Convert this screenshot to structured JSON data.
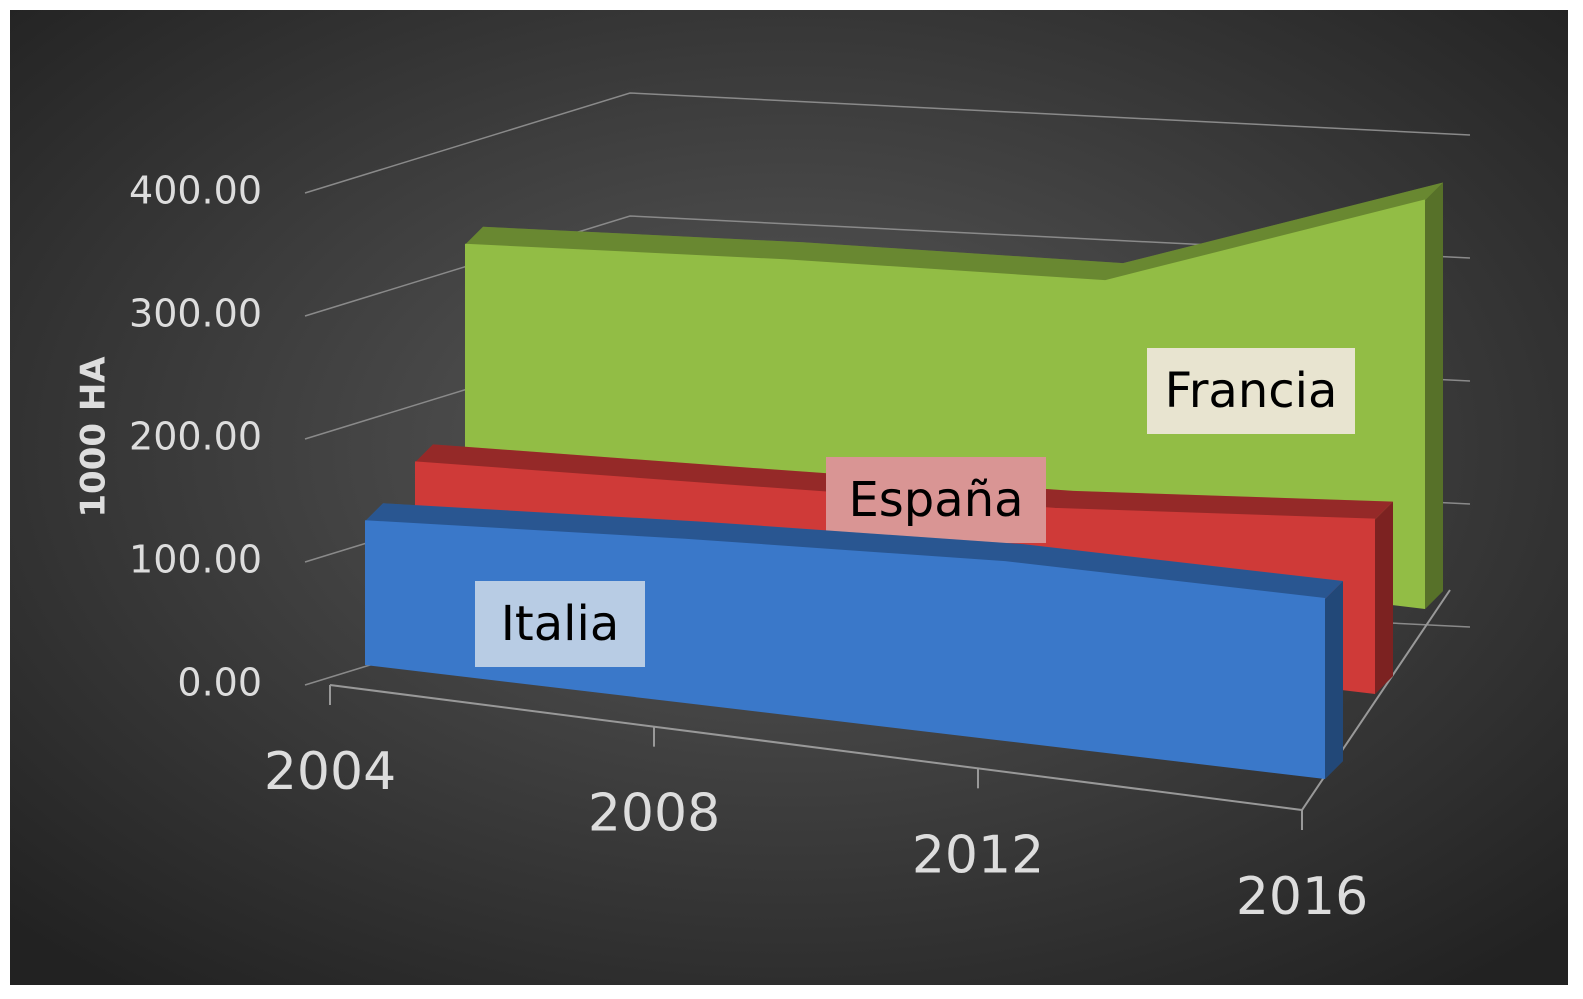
{
  "chart_data": {
    "type": "line3d",
    "y_axis_label": "1000 HA",
    "categories": [
      "2004",
      "2008",
      "2012",
      "2016"
    ],
    "series": [
      {
        "name": "Italia",
        "color": "#3a78c9",
        "values": [
          125,
          138,
          147,
          144
        ]
      },
      {
        "name": "España",
        "color": "#cf3a38",
        "values": [
          110,
          120,
          130,
          150
        ]
      },
      {
        "name": "Francia",
        "color": "#92bd45",
        "values": [
          253,
          268,
          277,
          380
        ]
      }
    ],
    "ylim": [
      0,
      400
    ],
    "yticks": [
      {
        "value": 0,
        "label": "0.00"
      },
      {
        "value": 100,
        "label": "100.00"
      },
      {
        "value": 200,
        "label": "200.00"
      },
      {
        "value": 300,
        "label": "300.00"
      },
      {
        "value": 400,
        "label": "400.00"
      }
    ],
    "grid": true
  }
}
